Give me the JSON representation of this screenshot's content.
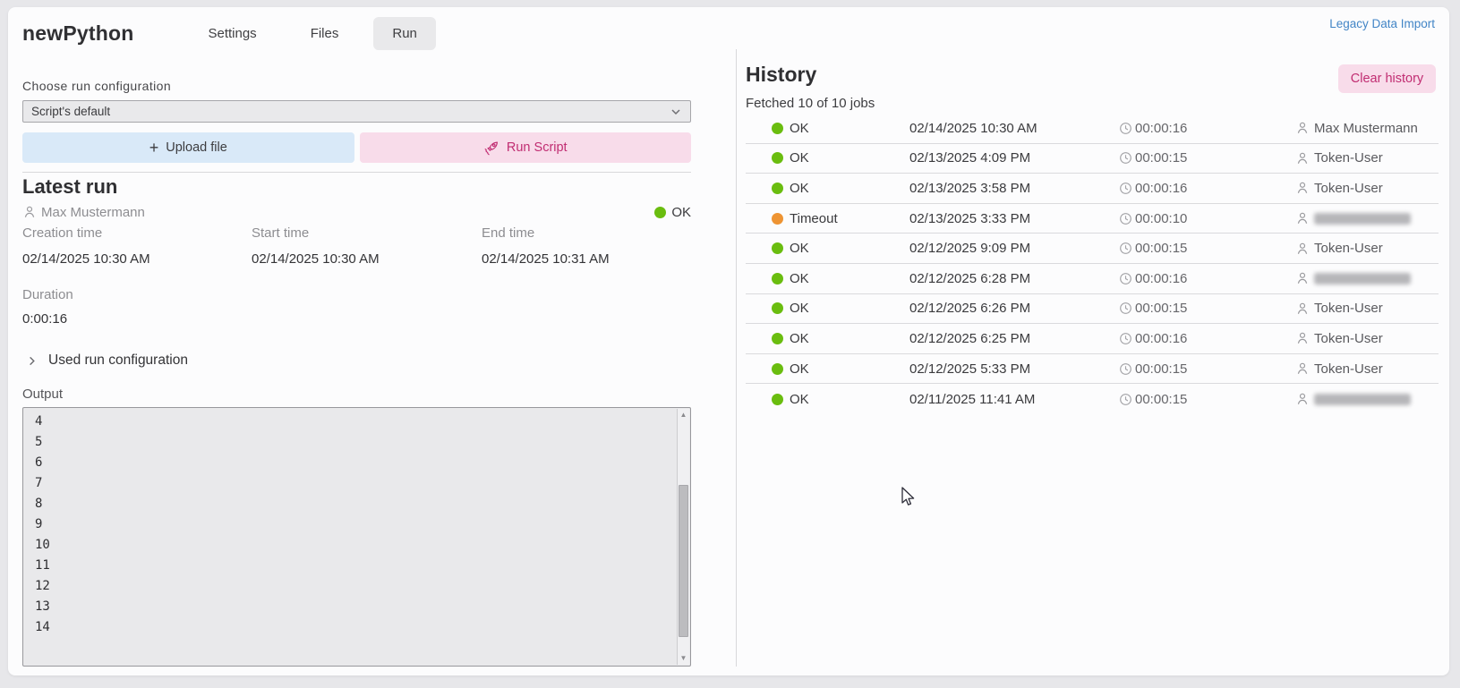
{
  "header": {
    "title": "newPython",
    "legacy_link": "Legacy Data Import",
    "tabs": [
      {
        "label": "Settings",
        "active": false
      },
      {
        "label": "Files",
        "active": false
      },
      {
        "label": "Run",
        "active": true
      }
    ]
  },
  "run_config": {
    "label": "Choose run configuration",
    "selected": "Script's default",
    "dropdown_icon": "chevron-down-icon"
  },
  "actions": {
    "upload_label": "Upload file",
    "upload_icon": "plus-icon",
    "run_label": "Run Script",
    "run_icon": "rocket-icon"
  },
  "latest_run": {
    "title": "Latest run",
    "user": "Max Mustermann",
    "user_icon": "person-icon",
    "status": "OK",
    "fields": [
      {
        "label": "Creation time",
        "value": "02/14/2025 10:30 AM"
      },
      {
        "label": "Start time",
        "value": "02/14/2025 10:30 AM"
      },
      {
        "label": "End time",
        "value": "02/14/2025 10:31 AM"
      }
    ],
    "duration_label": "Duration",
    "duration": "0:00:16",
    "used_config_label": "Used run configuration",
    "used_config_icon": "chevron-right-icon",
    "output_label": "Output",
    "output_lines": [
      "4",
      "5",
      "6",
      "7",
      "8",
      "9",
      "10",
      "11",
      "12",
      "13",
      "14"
    ]
  },
  "history": {
    "title": "History",
    "subtitle": "Fetched 10 of 10 jobs",
    "clear_button": "Clear history",
    "duration_icon": "clock-icon",
    "user_icon": "person-icon",
    "jobs": [
      {
        "status": "OK",
        "date": "02/14/2025 10:30 AM",
        "duration": "00:00:16",
        "user": "Max Mustermann",
        "user_redacted": false
      },
      {
        "status": "OK",
        "date": "02/13/2025 4:09 PM",
        "duration": "00:00:15",
        "user": "Token-User",
        "user_redacted": false
      },
      {
        "status": "OK",
        "date": "02/13/2025 3:58 PM",
        "duration": "00:00:16",
        "user": "Token-User",
        "user_redacted": false
      },
      {
        "status": "Timeout",
        "date": "02/13/2025 3:33 PM",
        "duration": "00:00:10",
        "user": "",
        "user_redacted": true
      },
      {
        "status": "OK",
        "date": "02/12/2025 9:09 PM",
        "duration": "00:00:15",
        "user": "Token-User",
        "user_redacted": false
      },
      {
        "status": "OK",
        "date": "02/12/2025 6:28 PM",
        "duration": "00:00:16",
        "user": "",
        "user_redacted": true
      },
      {
        "status": "OK",
        "date": "02/12/2025 6:26 PM",
        "duration": "00:00:15",
        "user": "Token-User",
        "user_redacted": false
      },
      {
        "status": "OK",
        "date": "02/12/2025 6:25 PM",
        "duration": "00:00:16",
        "user": "Token-User",
        "user_redacted": false
      },
      {
        "status": "OK",
        "date": "02/12/2025 5:33 PM",
        "duration": "00:00:15",
        "user": "Token-User",
        "user_redacted": false
      },
      {
        "status": "OK",
        "date": "02/11/2025 11:41 AM",
        "duration": "00:00:15",
        "user": "",
        "user_redacted": true
      }
    ]
  },
  "colors": {
    "status_ok": "#6abd0f",
    "status_timeout": "#ee9433",
    "accent_pink_bg": "#f8dcea",
    "accent_pink_text": "#c12d72",
    "accent_blue_bg": "#d9e9f8",
    "link_blue": "#4285c6"
  }
}
